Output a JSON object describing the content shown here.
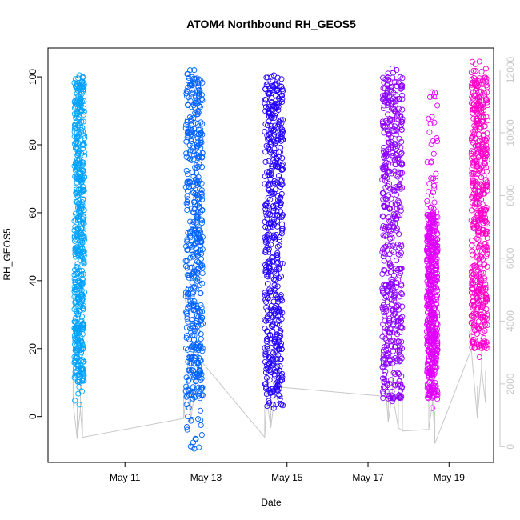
{
  "chart_data": {
    "type": "scatter",
    "title": "ATOM4 Northbound RH_GEOS5",
    "xlabel": "Date",
    "ylabel": "RH_GEOS5",
    "x_ticks": [
      "May 11",
      "May 13",
      "May 15",
      "May 17",
      "May 19"
    ],
    "x_tick_days": [
      11,
      13,
      15,
      17,
      19
    ],
    "xlim": [
      9.1,
      20.1
    ],
    "ylim": [
      -13.5,
      108.5
    ],
    "y_ticks": [
      0,
      20,
      40,
      60,
      80,
      100
    ],
    "y2_label": "",
    "y2lim": [
      -500,
      12700
    ],
    "y2_ticks": [
      0,
      2000,
      4000,
      6000,
      8000,
      10000,
      12000
    ],
    "marker": "open-circle",
    "grid": false,
    "legend": "none",
    "series": [
      {
        "flight_day": 9.9,
        "color": "#00A2FF",
        "x_range": [
          9.75,
          10.0
        ],
        "rh_range": [
          3.5,
          100.5
        ],
        "dense_min": 10,
        "dense_max": 100
      },
      {
        "flight_day": 12.75,
        "color": "#0062FF",
        "x_range": [
          12.5,
          12.92
        ],
        "rh_range": [
          -9.5,
          102
        ],
        "dense_min": 5,
        "dense_max": 100
      },
      {
        "flight_day": 14.65,
        "color": "#2200FF",
        "x_range": [
          14.45,
          14.9
        ],
        "rh_range": [
          2.5,
          100.5
        ],
        "dense_min": 3,
        "dense_max": 100
      },
      {
        "flight_day": 17.6,
        "color": "#8C00FF",
        "x_range": [
          17.35,
          17.85
        ],
        "rh_range": [
          4.5,
          102.5
        ],
        "dense_min": 5,
        "dense_max": 100
      },
      {
        "flight_day": 18.6,
        "color": "#E100FF",
        "x_range": [
          18.45,
          18.72
        ],
        "rh_range": [
          2.5,
          95.5
        ],
        "dense_min": 5,
        "dense_max": 60
      },
      {
        "flight_day": 19.8,
        "color": "#FF00C8",
        "x_range": [
          19.55,
          19.95
        ],
        "rh_range": [
          17.5,
          104.5
        ],
        "dense_min": 20,
        "dense_max": 100
      }
    ],
    "altitude_line": {
      "color": "#c8c8c8",
      "points": [
        [
          9.72,
          1400
        ],
        [
          9.82,
          250
        ],
        [
          9.9,
          1200
        ],
        [
          9.95,
          300
        ],
        [
          12.45,
          900
        ],
        [
          12.55,
          2000
        ],
        [
          12.62,
          800
        ],
        [
          12.8,
          2500
        ],
        [
          12.9,
          2700
        ],
        [
          14.45,
          300
        ],
        [
          14.5,
          1500
        ],
        [
          14.6,
          600
        ],
        [
          14.75,
          2200
        ],
        [
          14.8,
          1900
        ],
        [
          17.45,
          1600
        ],
        [
          17.5,
          800
        ],
        [
          17.6,
          1700
        ],
        [
          17.75,
          600
        ],
        [
          17.85,
          500
        ],
        [
          18.5,
          550
        ],
        [
          18.6,
          1500
        ],
        [
          18.65,
          100
        ],
        [
          19.55,
          3100
        ],
        [
          19.7,
          900
        ],
        [
          19.8,
          2500
        ],
        [
          19.9,
          1400
        ]
      ]
    }
  }
}
